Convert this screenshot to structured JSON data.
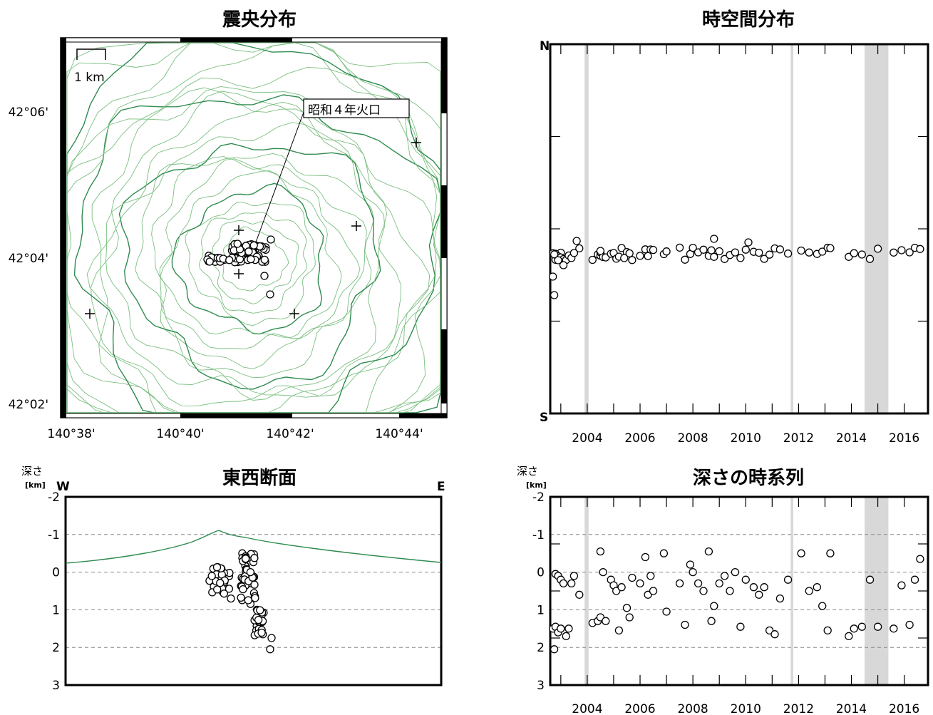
{
  "colors": {
    "topography": "#2e8b4f",
    "contour": "#7bbf80",
    "shade": "#d8d8d8",
    "grid": "#888888"
  },
  "epicenter": {
    "title": "震央分布",
    "scale_label": "1 km",
    "crater_label": "昭和４年火口",
    "lon_ticks": [
      "140°38'",
      "140°40'",
      "140°42'",
      "140°44'"
    ],
    "lat_ticks": [
      "42°06'",
      "42°04'",
      "42°02'"
    ]
  },
  "spacetime": {
    "title": "時空間分布",
    "n_label": "N",
    "s_label": "S",
    "year_ticks": [
      "2004",
      "2006",
      "2008",
      "2010",
      "2012",
      "2014",
      "2016"
    ]
  },
  "ew_section": {
    "title": "東西断面",
    "depth_label": "深さ",
    "unit_label": "[km]",
    "w_label": "W",
    "e_label": "E",
    "depth_ticks": [
      "-2",
      "-1",
      "0",
      "1",
      "2",
      "3"
    ]
  },
  "depth_time": {
    "title": "深さの時系列",
    "depth_label": "深さ",
    "unit_label": "[km]",
    "depth_ticks": [
      "-2",
      "-1",
      "0",
      "1",
      "2",
      "3"
    ],
    "year_ticks": [
      "2004",
      "2006",
      "2008",
      "2010",
      "2012",
      "2014",
      "2016"
    ]
  },
  "chart_data": [
    {
      "type": "scatter",
      "title": "震央分布",
      "x_range_lon": [
        "140°38'",
        "140°45'"
      ],
      "y_range_lat": [
        "42°02'",
        "42°07'"
      ],
      "stations_count": 6,
      "note_points": "epicenters clustered around 140°41' E, 42°04' N near crater"
    },
    {
      "type": "scatter",
      "title": "時空間分布",
      "x": "year",
      "xlim": [
        2002.6,
        2016.9
      ],
      "ylim": [
        "S",
        "N"
      ],
      "shaded_periods": [
        [
          2003.9,
          2004.05
        ],
        [
          2011.7,
          2011.8
        ],
        [
          2014.5,
          2015.4
        ]
      ]
    },
    {
      "type": "scatter",
      "title": "東西断面",
      "ylabel": "深さ [km]",
      "ylim": [
        -2,
        3
      ],
      "x_labels": [
        "W",
        "E"
      ]
    },
    {
      "type": "scatter",
      "title": "深さの時系列",
      "ylabel": "深さ [km]",
      "ylim": [
        -2,
        3
      ],
      "x": "year",
      "xlim": [
        2002.6,
        2016.9
      ],
      "shaded_periods": [
        [
          2003.9,
          2004.05
        ],
        [
          2011.7,
          2011.8
        ],
        [
          2014.5,
          2015.4
        ]
      ],
      "points": [
        [
          2002.7,
          1.5
        ],
        [
          2002.8,
          1.45
        ],
        [
          2002.9,
          1.6
        ],
        [
          2003.0,
          1.5
        ],
        [
          2002.8,
          0.05
        ],
        [
          2002.9,
          0.1
        ],
        [
          2003.0,
          0.2
        ],
        [
          2003.1,
          0.3
        ],
        [
          2002.75,
          2.05
        ],
        [
          2003.2,
          1.7
        ],
        [
          2003.3,
          1.5
        ],
        [
          2003.4,
          0.3
        ],
        [
          2003.5,
          0.1
        ],
        [
          2003.7,
          0.6
        ],
        [
          2004.2,
          1.35
        ],
        [
          2004.4,
          1.3
        ],
        [
          2004.5,
          1.2
        ],
        [
          2004.5,
          -0.55
        ],
        [
          2004.6,
          0.0
        ],
        [
          2004.7,
          1.3
        ],
        [
          2004.9,
          0.2
        ],
        [
          2005.0,
          0.35
        ],
        [
          2005.1,
          0.5
        ],
        [
          2005.2,
          1.55
        ],
        [
          2005.3,
          0.4
        ],
        [
          2005.5,
          0.95
        ],
        [
          2005.6,
          1.2
        ],
        [
          2005.7,
          0.15
        ],
        [
          2006.0,
          0.3
        ],
        [
          2006.2,
          -0.4
        ],
        [
          2006.3,
          0.6
        ],
        [
          2006.4,
          0.1
        ],
        [
          2006.5,
          0.5
        ],
        [
          2006.9,
          -0.5
        ],
        [
          2007.0,
          1.05
        ],
        [
          2007.5,
          0.3
        ],
        [
          2007.7,
          1.4
        ],
        [
          2007.9,
          -0.2
        ],
        [
          2008.0,
          0.0
        ],
        [
          2008.2,
          0.3
        ],
        [
          2008.4,
          0.5
        ],
        [
          2008.6,
          -0.55
        ],
        [
          2008.7,
          1.3
        ],
        [
          2008.8,
          0.9
        ],
        [
          2009.0,
          0.3
        ],
        [
          2009.2,
          0.1
        ],
        [
          2009.4,
          0.5
        ],
        [
          2009.6,
          0.0
        ],
        [
          2009.8,
          1.45
        ],
        [
          2010.0,
          0.2
        ],
        [
          2010.3,
          0.4
        ],
        [
          2010.5,
          0.6
        ],
        [
          2010.7,
          0.4
        ],
        [
          2010.9,
          1.55
        ],
        [
          2011.1,
          1.65
        ],
        [
          2011.3,
          0.7
        ],
        [
          2011.6,
          0.2
        ],
        [
          2012.1,
          -0.5
        ],
        [
          2012.4,
          0.5
        ],
        [
          2012.7,
          0.4
        ],
        [
          2012.9,
          0.9
        ],
        [
          2013.1,
          1.55
        ],
        [
          2013.2,
          -0.5
        ],
        [
          2013.9,
          1.7
        ],
        [
          2014.1,
          1.5
        ],
        [
          2014.4,
          1.45
        ],
        [
          2014.7,
          0.2
        ],
        [
          2015.0,
          1.45
        ],
        [
          2015.6,
          1.5
        ],
        [
          2015.9,
          0.35
        ],
        [
          2016.2,
          1.4
        ],
        [
          2016.4,
          0.2
        ],
        [
          2016.6,
          -0.35
        ]
      ]
    }
  ]
}
